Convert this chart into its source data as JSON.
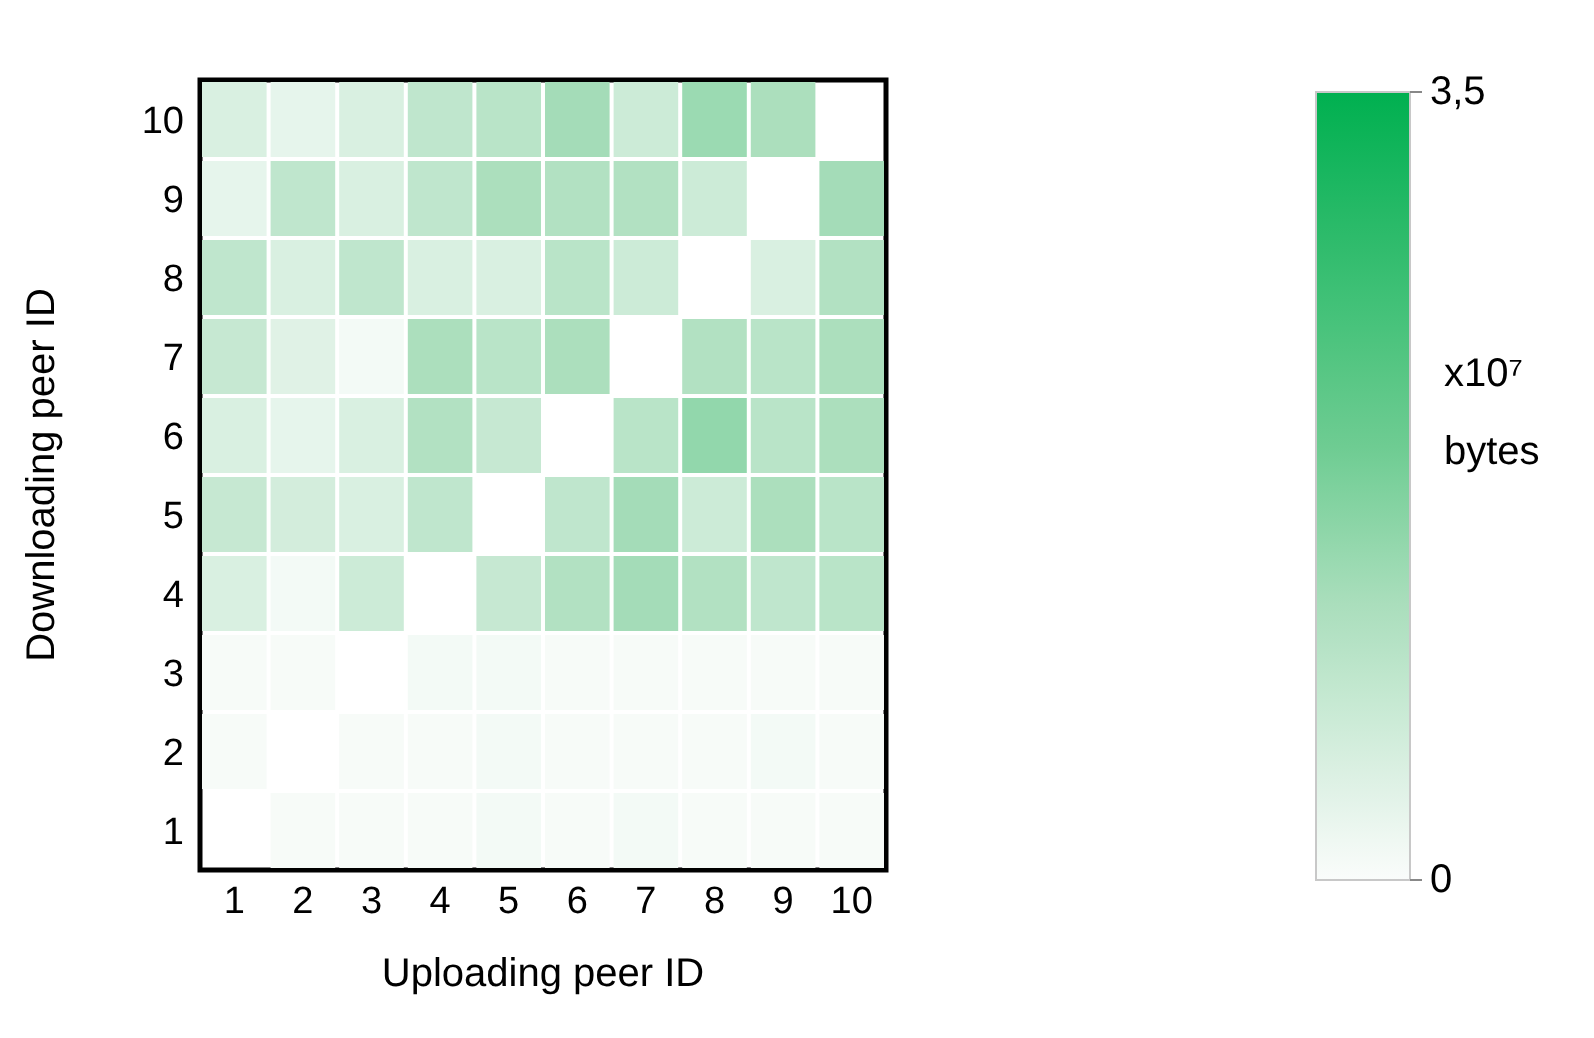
{
  "chart_data": {
    "type": "heatmap",
    "xlabel": "Uploading peer ID",
    "ylabel": "Downloading peer ID",
    "clabel": "x10⁷ bytes",
    "categories": [
      "1",
      "2",
      "3",
      "4",
      "5",
      "6",
      "7",
      "8",
      "9",
      "10"
    ],
    "y_categories": [
      "10",
      "9",
      "8",
      "7",
      "6",
      "5",
      "4",
      "3",
      "2",
      "1"
    ],
    "cells": [
      [
        0.5,
        0.3,
        0.5,
        0.9,
        1.0,
        1.3,
        0.7,
        1.4,
        1.2,
        null
      ],
      [
        0.3,
        0.9,
        0.5,
        0.9,
        1.2,
        1.1,
        1.1,
        0.7,
        null,
        1.3
      ],
      [
        0.9,
        0.5,
        0.9,
        0.5,
        0.5,
        1.0,
        0.7,
        null,
        0.5,
        1.1
      ],
      [
        0.8,
        0.4,
        0.1,
        1.2,
        1.0,
        1.2,
        null,
        1.1,
        1.0,
        1.2
      ],
      [
        0.5,
        0.3,
        0.5,
        1.1,
        0.8,
        null,
        1.0,
        1.5,
        1.0,
        1.2
      ],
      [
        0.8,
        0.6,
        0.5,
        0.9,
        null,
        0.9,
        1.3,
        0.7,
        1.2,
        1.0
      ],
      [
        0.5,
        0.1,
        0.7,
        null,
        0.8,
        1.1,
        1.3,
        1.1,
        0.9,
        1.0
      ],
      [
        0.05,
        0.05,
        null,
        0.1,
        0.1,
        0.05,
        0.05,
        0.05,
        0.05,
        0.05
      ],
      [
        0.05,
        null,
        0.05,
        0.05,
        0.1,
        0.05,
        0.05,
        0.05,
        0.1,
        0.05
      ],
      [
        null,
        0.05,
        0.05,
        0.05,
        0.1,
        0.05,
        0.1,
        0.05,
        0.05,
        0.05
      ]
    ],
    "clim": [
      0,
      3.5
    ],
    "cticks": [
      {
        "value": 0,
        "label": "0"
      },
      {
        "value": 3.5,
        "label": "3,5"
      }
    ]
  }
}
